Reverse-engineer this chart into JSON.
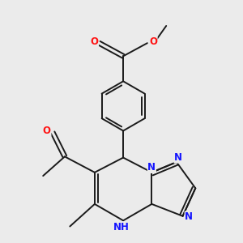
{
  "background_color": "#ebebeb",
  "bond_color": "#1a1a1a",
  "bond_width": 1.4,
  "atom_colors": {
    "N": "#1414ff",
    "O": "#ff1414",
    "C": "#1a1a1a"
  },
  "font_size_atom": 8.5,
  "fig_width": 3.0,
  "fig_height": 3.0,
  "dpi": 100
}
